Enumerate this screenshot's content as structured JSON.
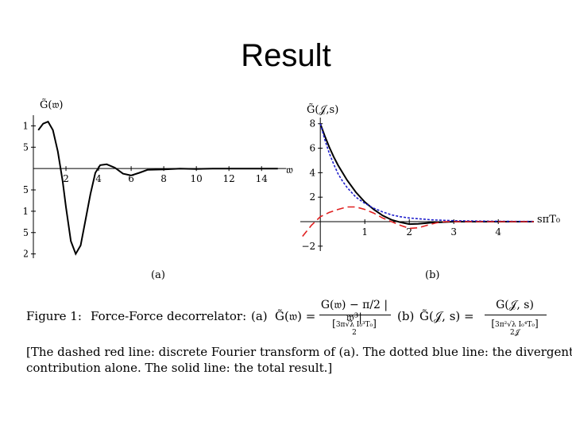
{
  "title": "Result",
  "chart_data": [
    {
      "type": "line",
      "ylabel": "G̃(𝔴)",
      "xlabel": "𝔴",
      "panel_label": "(a)",
      "xlim": [
        0,
        15.5
      ],
      "ylim": [
        -2.1,
        1.25
      ],
      "x_ticks": [
        2,
        4,
        6,
        8,
        10,
        12,
        14
      ],
      "y_ticks": [
        1,
        0.5,
        -0.5,
        -1,
        -1.5,
        -2
      ],
      "y_tick_labels": [
        "1",
        "0.5",
        "−0.5",
        "−1",
        "−1.5",
        "−2"
      ],
      "series": [
        {
          "style": "solid",
          "color": "#000000",
          "x": [
            0.3,
            0.6,
            0.9,
            1.2,
            1.5,
            1.8,
            2.0,
            2.3,
            2.6,
            2.9,
            3.2,
            3.5,
            3.8,
            4.1,
            4.5,
            5.0,
            5.5,
            6.0,
            6.5,
            7.0,
            8.0,
            9.0,
            10.0,
            11.0,
            12.0,
            13.0,
            14.0,
            15.0
          ],
          "y": [
            0.9,
            1.05,
            1.1,
            0.9,
            0.4,
            -0.3,
            -0.9,
            -1.7,
            -2.0,
            -1.8,
            -1.2,
            -0.6,
            -0.1,
            0.08,
            0.1,
            0.02,
            -0.12,
            -0.16,
            -0.1,
            -0.03,
            -0.02,
            0.0,
            -0.01,
            0.0,
            0.0,
            0.0,
            0.0,
            0.0
          ]
        }
      ]
    },
    {
      "type": "line",
      "ylabel": "G̃(𝒥,s)",
      "xlabel": "sπT₀",
      "panel_label": "(b)",
      "xlim": [
        -0.45,
        4.8
      ],
      "ylim": [
        -2.4,
        8.5
      ],
      "x_ticks": [
        1,
        2,
        3,
        4
      ],
      "y_ticks": [
        8,
        6,
        4,
        2,
        -2
      ],
      "y_tick_labels": [
        "8",
        "6",
        "4",
        "2",
        "−2"
      ],
      "series": [
        {
          "style": "solid",
          "color": "#000000",
          "x": [
            0.0,
            0.1,
            0.2,
            0.3,
            0.4,
            0.5,
            0.6,
            0.8,
            1.0,
            1.2,
            1.4,
            1.6,
            1.8,
            2.0,
            2.2,
            2.5,
            3.0,
            3.5,
            4.0,
            4.5,
            4.8
          ],
          "y": [
            8.0,
            7.0,
            6.1,
            5.3,
            4.6,
            4.0,
            3.4,
            2.4,
            1.6,
            1.0,
            0.5,
            0.15,
            -0.05,
            -0.2,
            -0.18,
            -0.08,
            0.0,
            0.0,
            0.0,
            0.0,
            0.0
          ]
        },
        {
          "style": "dotted",
          "color": "#1f1fcc",
          "x": [
            0.0,
            0.1,
            0.2,
            0.3,
            0.4,
            0.5,
            0.6,
            0.8,
            1.0,
            1.2,
            1.4,
            1.6,
            1.8,
            2.0,
            2.5,
            3.0,
            3.5,
            4.0,
            4.5,
            4.8
          ],
          "y": [
            8.0,
            6.7,
            5.6,
            4.7,
            3.9,
            3.3,
            2.8,
            2.0,
            1.5,
            1.1,
            0.8,
            0.55,
            0.4,
            0.3,
            0.15,
            0.08,
            0.05,
            0.03,
            0.02,
            0.02
          ]
        },
        {
          "style": "dashed",
          "color": "#e02020",
          "x": [
            -0.4,
            -0.2,
            0.0,
            0.2,
            0.4,
            0.6,
            0.8,
            1.0,
            1.2,
            1.4,
            1.6,
            1.8,
            2.0,
            2.2,
            2.4,
            2.6,
            2.8,
            3.0,
            3.5,
            4.0,
            4.5,
            4.8
          ],
          "y": [
            -1.2,
            -0.3,
            0.4,
            0.75,
            1.0,
            1.2,
            1.2,
            1.0,
            0.7,
            0.3,
            0.0,
            -0.3,
            -0.55,
            -0.5,
            -0.3,
            -0.1,
            0.0,
            0.0,
            0.0,
            0.0,
            0.0,
            0.0
          ]
        }
      ]
    }
  ],
  "caption": {
    "fig_label": "Figure 1:",
    "fig_title": "Force-Force decorrelator:",
    "part_a": "(a)",
    "part_a_lhs": "G̃(𝔴) =",
    "part_a_num": "G(𝔴) − π/2 |𝔴³|",
    "part_a_den_main": "3π√λ I₀³T₀",
    "part_a_den_two": "2",
    "part_b": "(b)",
    "part_b_lhs": "G̃(𝒥, s) =",
    "part_b_num": "G(𝒥, s)",
    "part_b_den_main": "3π²√λ I₀⁴T₀",
    "part_b_den_sub": "2𝒥",
    "line2": "[The dashed red line: discrete Fourier transform of (a). The dotted blue line: the divergent",
    "line3": "contribution alone. The solid line: the total result.]"
  }
}
